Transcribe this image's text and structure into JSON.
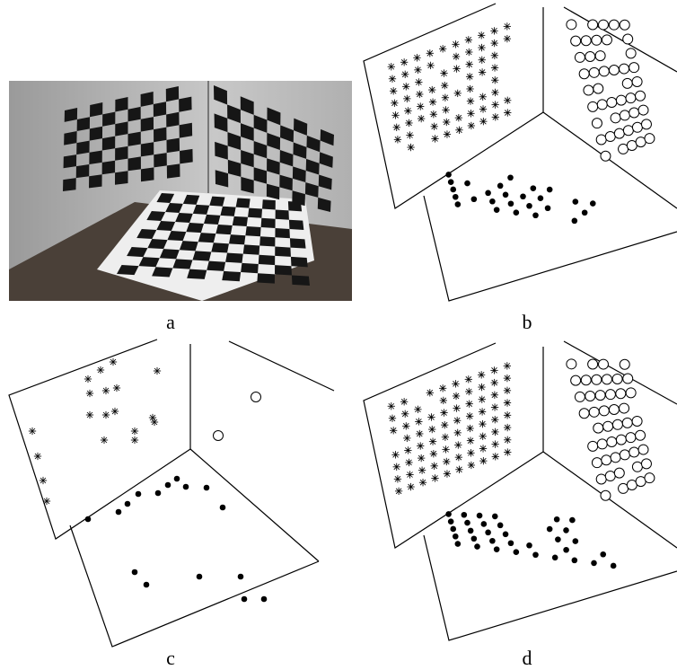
{
  "panels": [
    "a",
    "b",
    "c",
    "d"
  ]
}
